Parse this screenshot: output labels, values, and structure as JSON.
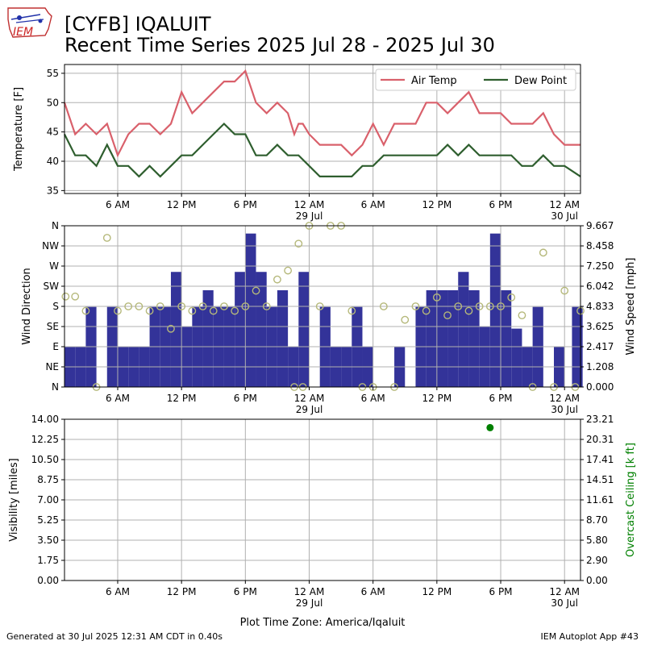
{
  "header": {
    "title_line1": "[CYFB] IQALUIT",
    "title_line2": "Recent Time Series 2025 Jul 28 - 2025 Jul 30",
    "logo_text": "IEM"
  },
  "footer": {
    "generated": "Generated at 30 Jul 2025 12:31 AM CDT in 0.40s",
    "app": "IEM Autoplot App #43"
  },
  "colors": {
    "air_temp": "#d9606b",
    "dew_point": "#2e5e2e",
    "wind_speed_bar": "#333399",
    "wind_dir_marker": "#b5b87a",
    "ceiling": "#008000",
    "grid": "#b0b0b0"
  },
  "chart_data": [
    {
      "type": "line",
      "name": "temperature",
      "ylabel": "Temperature [F]",
      "ylim": [
        34.5,
        56.5
      ],
      "yticks": [
        35,
        40,
        45,
        50,
        55
      ],
      "x_range_hours": [
        0,
        48.5
      ],
      "x_tick_labels": [
        "6 AM",
        "12 PM",
        "6 PM",
        "12 AM\n29 Jul",
        "6 AM",
        "12 PM",
        "6 PM",
        "12 AM\n30 Jul"
      ],
      "x_tick_hours": [
        5,
        11,
        17,
        23,
        29,
        35,
        41,
        47
      ],
      "grid": true,
      "legend_position": "top-right",
      "series": [
        {
          "name": "Air Temp",
          "x": [
            0,
            1,
            2,
            3,
            4,
            5,
            6,
            7,
            8,
            9,
            10,
            11,
            12,
            13,
            14,
            15,
            16,
            17,
            18,
            19,
            20,
            21,
            21.6,
            22,
            22.4,
            23,
            24,
            25,
            26,
            27,
            28,
            29,
            30,
            31,
            32,
            33,
            34,
            35,
            36,
            37,
            38,
            39,
            40,
            41,
            42,
            43,
            44,
            45,
            46,
            47,
            48,
            48.5
          ],
          "values": [
            50,
            44.6,
            46.4,
            44.6,
            46.4,
            41,
            44.6,
            46.4,
            46.4,
            44.6,
            46.4,
            51.8,
            48.2,
            50,
            51.8,
            53.6,
            53.6,
            55.4,
            50,
            48.2,
            50,
            48.2,
            44.6,
            46.4,
            46.4,
            44.6,
            42.8,
            42.8,
            42.8,
            41,
            42.8,
            46.4,
            42.8,
            46.4,
            46.4,
            46.4,
            50,
            50,
            48.2,
            50,
            51.8,
            48.2,
            48.2,
            48.2,
            46.4,
            46.4,
            46.4,
            48.2,
            44.6,
            42.8,
            42.8,
            42.8
          ]
        },
        {
          "name": "Dew Point",
          "x": [
            0,
            1,
            2,
            3,
            4,
            5,
            6,
            7,
            8,
            9,
            10,
            11,
            12,
            13,
            14,
            15,
            16,
            17,
            18,
            19,
            20,
            21,
            22,
            23,
            24,
            25,
            26,
            27,
            28,
            29,
            30,
            31,
            32,
            33,
            34,
            35,
            36,
            37,
            38,
            39,
            40,
            41,
            42,
            43,
            44,
            45,
            46,
            47,
            48.5
          ],
          "values": [
            44.6,
            41,
            41,
            39.2,
            42.8,
            39.2,
            39.2,
            37.4,
            39.2,
            37.4,
            39.2,
            41,
            41,
            42.8,
            44.6,
            46.4,
            44.6,
            44.6,
            41,
            41,
            42.8,
            41,
            41,
            39.2,
            37.4,
            37.4,
            37.4,
            37.4,
            39.2,
            39.2,
            41,
            41,
            41,
            41,
            41,
            41,
            42.8,
            41,
            42.8,
            41,
            41,
            41,
            41,
            39.2,
            39.2,
            41,
            39.2,
            39.2,
            37.4
          ]
        }
      ]
    },
    {
      "type": "bar",
      "name": "wind",
      "ylabel": "Wind Direction",
      "y2label": "Wind Speed [mph]",
      "y_direction_ticks": [
        "N",
        "NE",
        "E",
        "SE",
        "S",
        "SW",
        "W",
        "NW",
        "N"
      ],
      "y_direction_degrees": [
        0,
        45,
        90,
        135,
        180,
        225,
        270,
        315,
        360
      ],
      "y2lim": [
        0,
        9.667
      ],
      "y2ticks": [
        "0.000",
        "1.208",
        "2.417",
        "3.625",
        "4.833",
        "6.042",
        "7.250",
        "8.458",
        "9.667"
      ],
      "x_range_hours": [
        0,
        48.5
      ],
      "grid": true,
      "series": [
        {
          "name": "Wind Speed",
          "x": [
            0.5,
            1.5,
            2.5,
            3.5,
            4.5,
            5.5,
            6.5,
            7.5,
            8.5,
            9.5,
            10.5,
            11.5,
            12.5,
            13.5,
            14.5,
            15.5,
            16.5,
            17.5,
            18.5,
            19.5,
            20.5,
            21.5,
            22.5,
            23.5,
            24.5,
            25.5,
            26.5,
            27.5,
            28.5,
            29.5,
            30.5,
            31.5,
            32.5,
            33.5,
            34.5,
            35.5,
            36.5,
            37.5,
            38.5,
            39.5,
            40.5,
            41.5,
            42.5,
            43.5,
            44.5,
            45.5,
            46.5,
            47.5,
            48.2
          ],
          "values": [
            2.4,
            2.4,
            4.8,
            0,
            4.8,
            2.4,
            2.4,
            2.4,
            4.8,
            4.8,
            6.9,
            3.6,
            4.8,
            5.8,
            4.8,
            4.8,
            6.9,
            9.2,
            6.9,
            4.8,
            5.8,
            2.4,
            6.9,
            0,
            4.8,
            2.4,
            2.4,
            4.8,
            2.4,
            0,
            0,
            2.4,
            0,
            4.8,
            5.8,
            5.8,
            5.8,
            6.9,
            5.8,
            3.6,
            9.2,
            5.8,
            3.5,
            2.4,
            4.8,
            0,
            2.4,
            0,
            4.8
          ]
        },
        {
          "name": "Wind Direction",
          "type": "scatter",
          "x": [
            0.1,
            1,
            2,
            3,
            4,
            5,
            6,
            7,
            8,
            9,
            10,
            11,
            12,
            13,
            14,
            15,
            16,
            17,
            18,
            19,
            20,
            21,
            21.6,
            22,
            22.4,
            23,
            24,
            25,
            26,
            27,
            28,
            29,
            30,
            31,
            32,
            33,
            34,
            35,
            36,
            37,
            38,
            39,
            40,
            41,
            42,
            43,
            44,
            45,
            46,
            47,
            48,
            48.5
          ],
          "values": [
            202,
            202,
            170,
            0,
            333,
            170,
            180,
            180,
            170,
            180,
            130,
            180,
            170,
            180,
            170,
            180,
            170,
            180,
            215,
            180,
            240,
            260,
            0,
            320,
            0,
            360,
            180,
            380,
            360,
            170,
            0,
            0,
            180,
            0,
            150,
            180,
            170,
            200,
            160,
            180,
            170,
            180,
            180,
            180,
            200,
            160,
            0,
            300,
            0,
            215,
            0,
            170
          ]
        }
      ]
    },
    {
      "type": "scatter",
      "name": "visibility",
      "ylabel": "Visibility [miles]",
      "y2label": "Overcast Ceiling [k ft]",
      "ylim": [
        0,
        14
      ],
      "yticks": [
        "0.00",
        "1.75",
        "3.50",
        "5.25",
        "7.00",
        "8.75",
        "10.50",
        "12.25",
        "14.00"
      ],
      "y2lim": [
        0,
        23.21
      ],
      "y2ticks": [
        "0.00",
        "2.90",
        "5.80",
        "8.70",
        "11.61",
        "14.51",
        "17.41",
        "20.31",
        "23.21"
      ],
      "xlabel": "Plot Time Zone: America/Iqaluit",
      "x_range_hours": [
        0,
        48.5
      ],
      "grid": true,
      "series": [
        {
          "name": "Overcast Ceiling",
          "x": [
            40
          ],
          "values": [
            22.0
          ]
        }
      ]
    }
  ]
}
